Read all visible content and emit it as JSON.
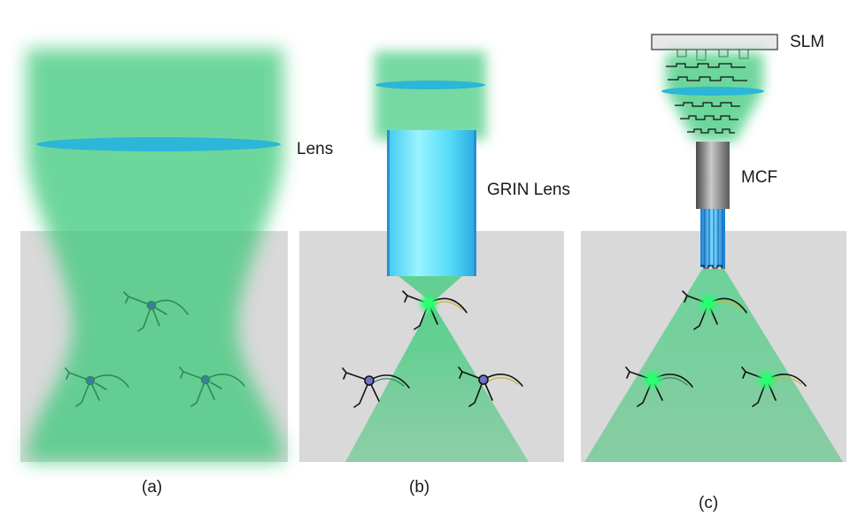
{
  "labels": {
    "lens": "Lens",
    "grin_lens": "GRIN Lens",
    "slm": "SLM",
    "mcf": "MCF"
  },
  "panels": [
    {
      "caption": "(a)"
    },
    {
      "caption": "(b)"
    },
    {
      "caption": "(c)"
    }
  ],
  "colors": {
    "tissue": "#d9d9d9",
    "light": "#3ec97a",
    "lens_blue": "#2cb6d8",
    "grin_cyan": "#6fe6ff",
    "fiber_gray": "#8a8a8a",
    "neuron_green": "#2e8a5a",
    "focus_spot": "#23ff6a",
    "inactive_soma": "#6f73c8"
  }
}
